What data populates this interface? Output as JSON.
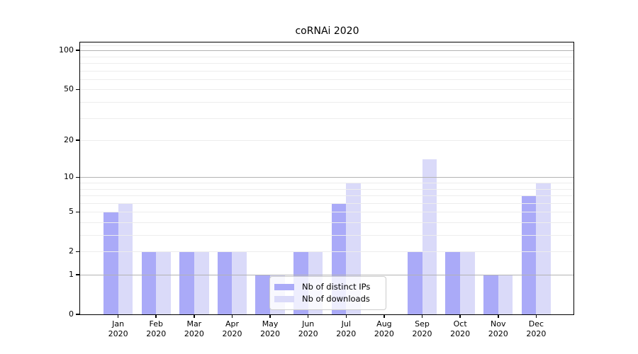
{
  "title": "coRNAi 2020",
  "year": "2020",
  "chart_data": {
    "type": "bar",
    "title": "coRNAi 2020",
    "categories": [
      "Jan 2020",
      "Feb 2020",
      "Mar 2020",
      "Apr 2020",
      "May 2020",
      "Jun 2020",
      "Jul 2020",
      "Aug 2020",
      "Sep 2020",
      "Oct 2020",
      "Nov 2020",
      "Dec 2020"
    ],
    "months": [
      "Jan",
      "Feb",
      "Mar",
      "Apr",
      "May",
      "Jun",
      "Jul",
      "Aug",
      "Sep",
      "Oct",
      "Nov",
      "Dec"
    ],
    "series": [
      {
        "name": "Nb of distinct IPs",
        "color": "#aaaaf8",
        "values": [
          5,
          2,
          2,
          2,
          1,
          2,
          6,
          0,
          2,
          2,
          1,
          7
        ]
      },
      {
        "name": "Nb of downloads",
        "color": "#dadaf9",
        "values": [
          6,
          2,
          2,
          2,
          1,
          2,
          9,
          0,
          14,
          2,
          1,
          9
        ]
      }
    ],
    "xlabel": "",
    "ylabel": "",
    "yscale": "log1p",
    "ylim": [
      0,
      115
    ],
    "y_tick_labels": [
      "0",
      "1",
      "2",
      "5",
      "10",
      "20",
      "50",
      "100"
    ],
    "y_tick_values": [
      0,
      1,
      2,
      5,
      10,
      20,
      50,
      100
    ],
    "grid": "horizontal; strong lines at 1,10,100; faint minor log lines",
    "legend_position": "lower-center-inside"
  },
  "legend": {
    "items": [
      {
        "label": "Nb of distinct IPs"
      },
      {
        "label": "Nb of downloads"
      }
    ]
  },
  "colors": {
    "distinct_ips_bar": "#aaaaf8",
    "downloads_bar": "#dadaf9",
    "major_grid": "#b3b3b3",
    "minor_grid": "#ededed",
    "axis_frame": "#000000",
    "background": "#ffffff"
  }
}
